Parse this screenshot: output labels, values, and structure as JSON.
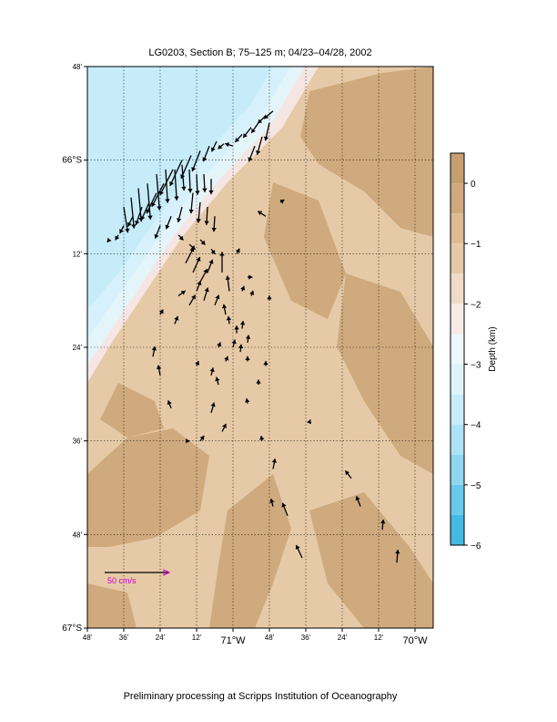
{
  "title": "LG0203, Section B; 75–125 m; 04/23–04/28, 2002",
  "footer": "Preliminary processing at Scripps Institution of Oceanography",
  "map": {
    "lon_range": [
      -71.8,
      -69.9
    ],
    "lat_range": [
      -67.0,
      -65.8
    ],
    "lat_ticks": [
      {
        "value": -65.8,
        "label": "48'"
      },
      {
        "value": -66.0,
        "label": "66°S"
      },
      {
        "value": -66.2,
        "label": "12'"
      },
      {
        "value": -66.4,
        "label": "24'"
      },
      {
        "value": -66.6,
        "label": "36'"
      },
      {
        "value": -66.8,
        "label": "48'"
      },
      {
        "value": -67.0,
        "label": "67°S"
      }
    ],
    "lon_ticks": [
      {
        "value": -71.8,
        "label": "48'"
      },
      {
        "value": -71.6,
        "label": "36'"
      },
      {
        "value": -71.4,
        "label": "24'"
      },
      {
        "value": -71.2,
        "label": "12'"
      },
      {
        "value": -71.0,
        "label": "71°W"
      },
      {
        "value": -70.8,
        "label": "48'"
      },
      {
        "value": -70.6,
        "label": "36'"
      },
      {
        "value": -70.4,
        "label": "24'"
      },
      {
        "value": -70.2,
        "label": "12'"
      },
      {
        "value": -70.0,
        "label": "70°W"
      }
    ],
    "grid": true,
    "colors": {
      "deep_ocean": "#c6ecfa",
      "mid_ocean": "#d6f1fb",
      "slope": "#e4f5fa",
      "shelf_edge": "#f5e6e4",
      "shelf_light": "#e6c9a6",
      "shelf_dark": "#cfaa7e",
      "arrow": "#000000",
      "scale_arrow": "#cc00cc"
    }
  },
  "colorbar": {
    "label": "Depth (km)",
    "ticks": [
      "0",
      "−1",
      "−2",
      "−3",
      "−4",
      "−5",
      "−6"
    ],
    "tick_values": [
      0,
      -1,
      -2,
      -3,
      -4,
      -5,
      -6
    ],
    "range": [
      -6,
      0.5
    ]
  },
  "scale_arrow": {
    "label": "50 cm/s",
    "speed_cm_s": 50
  },
  "vectors": [
    [
      -70.78,
      -65.895,
      -0.09,
      -0.03
    ],
    [
      -70.82,
      -65.905,
      -0.08,
      -0.03
    ],
    [
      -70.86,
      -65.92,
      -0.07,
      -0.04
    ],
    [
      -70.9,
      -65.93,
      -0.08,
      -0.04
    ],
    [
      -70.95,
      -65.945,
      -0.07,
      -0.03
    ],
    [
      -70.8,
      -65.92,
      -0.04,
      -0.07
    ],
    [
      -70.84,
      -65.95,
      -0.05,
      -0.07
    ],
    [
      -70.88,
      -65.97,
      -0.06,
      -0.06
    ],
    [
      -71.0,
      -65.97,
      -0.08,
      0.01
    ],
    [
      -71.05,
      -65.965,
      -0.06,
      -0.02
    ],
    [
      -71.09,
      -65.96,
      -0.05,
      -0.04
    ],
    [
      -71.13,
      -65.97,
      -0.06,
      -0.06
    ],
    [
      -71.18,
      -65.98,
      -0.08,
      -0.08
    ],
    [
      -71.23,
      -65.99,
      -0.1,
      -0.09
    ],
    [
      -71.28,
      -66.0,
      -0.12,
      -0.1
    ],
    [
      -71.33,
      -66.02,
      -0.13,
      -0.1
    ],
    [
      -71.38,
      -66.05,
      -0.12,
      -0.09
    ],
    [
      -71.42,
      -66.07,
      -0.1,
      -0.08
    ],
    [
      -71.46,
      -66.09,
      -0.08,
      -0.07
    ],
    [
      -71.5,
      -66.1,
      -0.06,
      -0.07
    ],
    [
      -71.55,
      -66.12,
      -0.05,
      -0.04
    ],
    [
      -71.6,
      -66.14,
      -0.04,
      -0.03
    ],
    [
      -71.63,
      -66.16,
      -0.03,
      -0.02
    ],
    [
      -71.68,
      -66.17,
      -0.02,
      -0.01
    ],
    [
      -71.6,
      -66.1,
      0.04,
      -0.1
    ],
    [
      -71.56,
      -66.08,
      0.03,
      -0.12
    ],
    [
      -71.52,
      -66.06,
      0.03,
      -0.13
    ],
    [
      -71.47,
      -66.05,
      0.03,
      -0.14
    ],
    [
      -71.42,
      -66.03,
      0.03,
      -0.14
    ],
    [
      -71.37,
      -66.02,
      0.02,
      -0.13
    ],
    [
      -71.32,
      -66.02,
      0.02,
      -0.12
    ],
    [
      -71.28,
      -66.01,
      0.02,
      -0.1
    ],
    [
      -71.24,
      -66.02,
      0.01,
      -0.09
    ],
    [
      -71.2,
      -66.03,
      0.01,
      -0.08
    ],
    [
      -71.16,
      -66.03,
      0.01,
      -0.07
    ],
    [
      -71.12,
      -66.04,
      0.0,
      -0.06
    ],
    [
      -71.22,
      -66.07,
      -0.02,
      -0.08
    ],
    [
      -71.18,
      -66.09,
      -0.02,
      -0.08
    ],
    [
      -71.14,
      -66.1,
      -0.01,
      -0.07
    ],
    [
      -71.1,
      -66.12,
      -0.01,
      -0.06
    ],
    [
      -71.28,
      -66.1,
      -0.04,
      -0.06
    ],
    [
      -71.34,
      -66.12,
      -0.05,
      -0.05
    ],
    [
      -71.4,
      -66.14,
      -0.05,
      -0.05
    ],
    [
      -71.3,
      -66.16,
      0.05,
      -0.02
    ],
    [
      -71.24,
      -66.18,
      0.06,
      -0.02
    ],
    [
      -71.18,
      -66.17,
      0.05,
      -0.02
    ],
    [
      -71.12,
      -66.19,
      0.04,
      -0.02
    ],
    [
      -71.26,
      -66.22,
      0.08,
      0.06
    ],
    [
      -71.22,
      -66.24,
      0.07,
      0.06
    ],
    [
      -71.18,
      -66.26,
      0.07,
      0.05
    ],
    [
      -71.14,
      -66.24,
      0.05,
      0.05
    ],
    [
      -71.2,
      -66.28,
      0.04,
      0.04
    ],
    [
      -71.3,
      -66.29,
      0.07,
      0.02
    ],
    [
      -71.24,
      -66.31,
      0.06,
      0.04
    ],
    [
      -71.16,
      -66.3,
      0.04,
      0.05
    ],
    [
      -71.1,
      -66.31,
      0.04,
      0.04
    ],
    [
      -71.06,
      -66.24,
      0.0,
      0.08
    ],
    [
      -71.02,
      -66.28,
      -0.02,
      0.06
    ],
    [
      -70.98,
      -66.2,
      0.03,
      0.02
    ],
    [
      -70.95,
      -66.28,
      0.02,
      0.02
    ],
    [
      -70.9,
      -66.29,
      0.02,
      0.02
    ],
    [
      -71.04,
      -66.33,
      -0.02,
      0.04
    ],
    [
      -71.02,
      -66.35,
      -0.01,
      0.03
    ],
    [
      -70.98,
      -66.37,
      0.0,
      0.03
    ],
    [
      -70.95,
      -66.36,
      0.01,
      0.03
    ],
    [
      -70.92,
      -66.39,
      0.01,
      0.03
    ],
    [
      -70.96,
      -66.41,
      0.01,
      0.03
    ],
    [
      -71.0,
      -66.4,
      0.02,
      0.03
    ],
    [
      -71.04,
      -66.43,
      0.02,
      0.02
    ],
    [
      -71.08,
      -66.4,
      0.02,
      0.02
    ],
    [
      -70.92,
      -66.43,
      0.0,
      0.02
    ],
    [
      -70.86,
      -66.48,
      0.0,
      0.02
    ],
    [
      -71.2,
      -66.44,
      0.02,
      0.02
    ],
    [
      -71.12,
      -66.46,
      0.02,
      0.03
    ],
    [
      -71.08,
      -66.48,
      -0.02,
      0.03
    ],
    [
      -71.44,
      -66.42,
      0.02,
      0.04
    ],
    [
      -71.4,
      -66.46,
      -0.02,
      0.04
    ],
    [
      -71.34,
      -66.53,
      -0.03,
      0.03
    ],
    [
      -71.12,
      -66.54,
      0.03,
      0.04
    ],
    [
      -71.06,
      -66.58,
      0.04,
      0.03
    ],
    [
      -71.26,
      -66.6,
      0.04,
      0.0
    ],
    [
      -71.18,
      -66.6,
      0.04,
      0.02
    ],
    [
      -71.32,
      -66.35,
      0.03,
      0.03
    ],
    [
      -71.4,
      -66.33,
      0.03,
      0.02
    ],
    [
      -70.92,
      -66.52,
      -0.01,
      0.02
    ],
    [
      -70.84,
      -66.6,
      -0.01,
      0.02
    ],
    [
      -70.78,
      -66.66,
      0.02,
      0.04
    ],
    [
      -70.78,
      -66.74,
      -0.02,
      0.03
    ],
    [
      -70.7,
      -66.76,
      -0.05,
      0.05
    ],
    [
      -70.62,
      -66.85,
      -0.06,
      0.05
    ],
    [
      -70.58,
      -66.56,
      0.01,
      0.01
    ],
    [
      -70.35,
      -66.68,
      -0.06,
      0.03
    ],
    [
      -70.3,
      -66.74,
      -0.04,
      0.04
    ],
    [
      -70.18,
      -66.79,
      0.01,
      0.04
    ],
    [
      -70.1,
      -66.86,
      0.01,
      0.05
    ],
    [
      -70.82,
      -66.12,
      -0.08,
      0.02
    ],
    [
      -70.74,
      -66.09,
      0.04,
      0.01
    ],
    [
      -70.92,
      -66.25,
      0.05,
      0.0
    ],
    [
      -70.8,
      -66.3,
      0.0,
      0.02
    ],
    [
      -70.82,
      -66.44,
      0.0,
      0.02
    ]
  ]
}
